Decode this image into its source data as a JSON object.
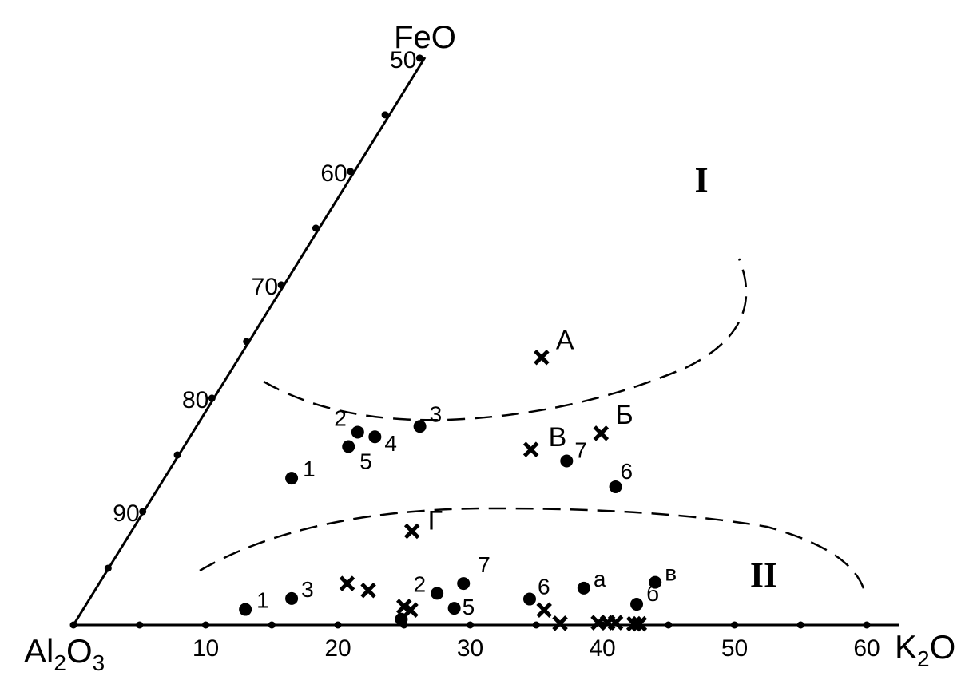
{
  "chart_data": {
    "type": "scatter",
    "title": "",
    "vertices": {
      "apex": "FeO",
      "left_base": [
        "Al",
        "2",
        "O",
        "3"
      ],
      "right_base": [
        "K",
        "2",
        "O"
      ]
    },
    "axes": {
      "base": {
        "range": [
          0,
          60
        ],
        "tick_step": 5,
        "labels": [
          {
            "value": 10,
            "text": "10"
          },
          {
            "value": 20,
            "text": "20"
          },
          {
            "value": 30,
            "text": "30"
          },
          {
            "value": 40,
            "text": "40"
          },
          {
            "value": 50,
            "text": "50"
          },
          {
            "value": 60,
            "text": "60"
          }
        ]
      },
      "left": {
        "range": [
          50,
          100
        ],
        "tick_step": 5,
        "labels": [
          {
            "value": 50,
            "text": "50"
          },
          {
            "value": 60,
            "text": "60"
          },
          {
            "value": 70,
            "text": "70"
          },
          {
            "value": 80,
            "text": "80"
          },
          {
            "value": 90,
            "text": "90"
          }
        ]
      }
    },
    "series": [
      {
        "marker": "dot",
        "points": [
          {
            "x": 16.5,
            "y": 0.255,
            "label": "1"
          },
          {
            "x": 21.5,
            "y": 0.335,
            "label": "2"
          },
          {
            "x": 26.2,
            "y": 0.345,
            "label": "3"
          },
          {
            "x": 22.8,
            "y": 0.327,
            "label": "4"
          },
          {
            "x": 20.8,
            "y": 0.31,
            "label": "5"
          },
          {
            "x": 41.0,
            "y": 0.24,
            "label": "6"
          },
          {
            "x": 37.3,
            "y": 0.285,
            "label": "7"
          }
        ]
      },
      {
        "marker": "dot",
        "points": [
          {
            "x": 13.0,
            "y": 0.027,
            "label": "1"
          },
          {
            "x": 16.5,
            "y": 0.046,
            "label": "3"
          },
          {
            "x": 27.5,
            "y": 0.055,
            "label": "2"
          },
          {
            "x": 29.5,
            "y": 0.072,
            "label": "7"
          },
          {
            "x": 28.8,
            "y": 0.029,
            "label": "5"
          },
          {
            "x": 34.5,
            "y": 0.045,
            "label": "6"
          },
          {
            "x": 38.6,
            "y": 0.064,
            "label": "а"
          },
          {
            "x": 44.0,
            "y": 0.074,
            "label": "в"
          },
          {
            "x": 42.6,
            "y": 0.036,
            "label": "б"
          },
          {
            "x": 24.8,
            "y": 0.01,
            "label": ""
          }
        ]
      },
      {
        "marker": "cross",
        "points": [
          {
            "x": 35.4,
            "y": 0.465,
            "label": "А"
          },
          {
            "x": 39.9,
            "y": 0.333,
            "label": "Б"
          },
          {
            "x": 34.6,
            "y": 0.305,
            "label": "В"
          },
          {
            "x": 25.6,
            "y": 0.163,
            "label": "Г"
          },
          {
            "x": 20.7,
            "y": 0.072,
            "label": ""
          },
          {
            "x": 22.3,
            "y": 0.06,
            "label": ""
          },
          {
            "x": 25.0,
            "y": 0.032,
            "label": ""
          },
          {
            "x": 25.5,
            "y": 0.026,
            "label": ""
          },
          {
            "x": 35.6,
            "y": 0.026,
            "label": ""
          },
          {
            "x": 36.8,
            "y": 0.003,
            "label": ""
          },
          {
            "x": 39.7,
            "y": 0.004,
            "label": ""
          },
          {
            "x": 40.4,
            "y": 0.004,
            "label": ""
          },
          {
            "x": 41.0,
            "y": 0.004,
            "label": ""
          },
          {
            "x": 42.4,
            "y": 0.002,
            "label": ""
          },
          {
            "x": 42.8,
            "y": 0.002,
            "label": ""
          }
        ]
      }
    ],
    "fields": [
      {
        "label": "I"
      },
      {
        "label": "II"
      }
    ],
    "grid": false,
    "legend": "none"
  }
}
